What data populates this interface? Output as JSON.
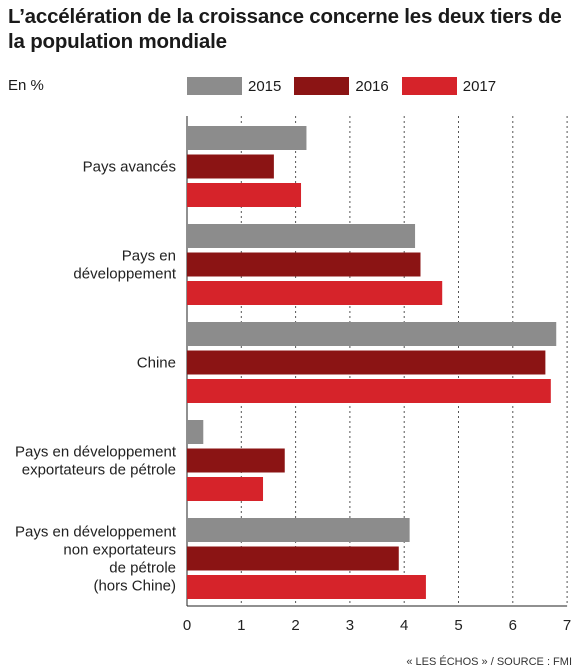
{
  "chart_data": {
    "type": "bar",
    "orientation": "horizontal",
    "title": "L’accélération de la croissance concerne les deux tiers de la population mondiale",
    "unit_label": "En %",
    "categories": [
      "Pays avancés",
      "Pays en développement",
      "Chine",
      "Pays en développement exportateurs de pétrole",
      "Pays en développement non exportateurs de pétrole (hors Chine)"
    ],
    "category_lines": [
      [
        "Pays avancés"
      ],
      [
        "Pays en",
        "développement"
      ],
      [
        "Chine"
      ],
      [
        "Pays en développement",
        "exportateurs de pétrole"
      ],
      [
        "Pays en développement",
        "non exportateurs",
        "de pétrole",
        "(hors Chine)"
      ]
    ],
    "series": [
      {
        "name": "2015",
        "color": "#8c8c8c",
        "values": [
          2.2,
          4.2,
          6.8,
          0.3,
          4.1
        ]
      },
      {
        "name": "2016",
        "color": "#8b1414",
        "values": [
          1.6,
          4.3,
          6.6,
          1.8,
          3.9
        ]
      },
      {
        "name": "2017",
        "color": "#d6232a",
        "values": [
          2.1,
          4.7,
          6.7,
          1.4,
          4.4
        ]
      }
    ],
    "xlim": [
      0,
      7
    ],
    "xticks": [
      "0",
      "1",
      "2",
      "3",
      "4",
      "5",
      "6",
      "7"
    ],
    "grid": "vertical dashed",
    "legend_position": "top"
  },
  "source": "« LES ÉCHOS » / SOURCE : FMI"
}
